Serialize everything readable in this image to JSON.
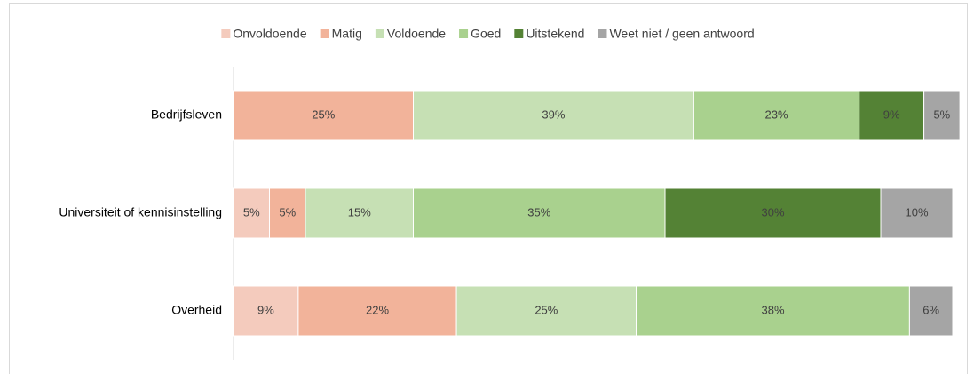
{
  "chart_data": {
    "type": "stacked-barh",
    "categories": [
      "Bedrijfsleven",
      "Universiteit of kennisinstelling",
      "Overheid"
    ],
    "xlim": [
      0,
      100
    ],
    "legend": "top",
    "series": [
      {
        "name": "Onvoldoende",
        "color": "#f4cbbd",
        "values": [
          null,
          5,
          9
        ],
        "value_labels": [
          null,
          "5%",
          "9%"
        ]
      },
      {
        "name": "Matig",
        "color": "#f2b39a",
        "values": [
          25,
          5,
          22
        ],
        "value_labels": [
          "25%",
          "5%",
          "22%"
        ]
      },
      {
        "name": "Voldoende",
        "color": "#c6e0b4",
        "values": [
          39,
          15,
          25
        ],
        "value_labels": [
          "39%",
          "15%",
          "25%"
        ]
      },
      {
        "name": "Goed",
        "color": "#a9d18e",
        "values": [
          23,
          35,
          38
        ],
        "value_labels": [
          "23%",
          "35%",
          "38%"
        ]
      },
      {
        "name": "Uitstekend",
        "color": "#548235",
        "values": [
          9,
          30,
          null
        ],
        "value_labels": [
          "9%",
          "30%",
          null
        ]
      },
      {
        "name": "Weet niet / geen antwoord",
        "color": "#a5a5a5",
        "values": [
          5,
          10,
          6
        ],
        "value_labels": [
          "5%",
          "10%",
          "6%"
        ]
      }
    ]
  }
}
